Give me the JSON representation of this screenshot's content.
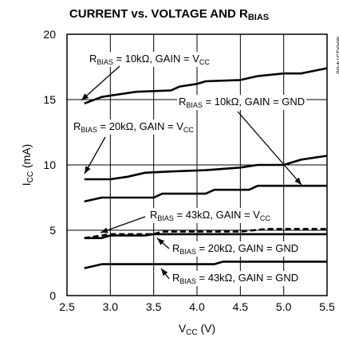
{
  "chart_data": {
    "type": "line",
    "title": "CURRENT vs. VOLTAGE AND R",
    "title_subscript": "BIAS",
    "xlabel": "V",
    "xlabel_subscript": "CC",
    "xlabel_unit": " (V)",
    "ylabel": "I",
    "ylabel_subscript": "CC",
    "ylabel_unit": " (mA)",
    "xlim": [
      2.5,
      5.5
    ],
    "ylim": [
      0,
      20
    ],
    "xticks": [
      "2.5",
      "3.0",
      "3.5",
      "4.0",
      "4.5",
      "5.0",
      "5.5"
    ],
    "yticks": [
      "0",
      "5",
      "10",
      "15",
      "20"
    ],
    "grid": true,
    "side_text": "MAX2374-08",
    "series": [
      {
        "id": "s1",
        "dashed": false,
        "points": [
          [
            2.7,
            14.7
          ],
          [
            2.9,
            15.2
          ],
          [
            3.1,
            15.4
          ],
          [
            3.3,
            15.6
          ],
          [
            3.7,
            15.7
          ],
          [
            3.8,
            16.0
          ],
          [
            4.0,
            16.2
          ],
          [
            4.1,
            16.4
          ],
          [
            4.5,
            16.5
          ],
          [
            4.7,
            16.8
          ],
          [
            5.0,
            17.0
          ],
          [
            5.2,
            17.0
          ],
          [
            5.5,
            17.4
          ]
        ]
      },
      {
        "id": "s2",
        "dashed": false,
        "points": [
          [
            2.7,
            8.9
          ],
          [
            3.0,
            8.9
          ],
          [
            3.2,
            9.1
          ],
          [
            3.4,
            9.4
          ],
          [
            3.7,
            9.5
          ],
          [
            4.1,
            9.6
          ],
          [
            4.5,
            9.8
          ],
          [
            4.7,
            10.0
          ],
          [
            5.0,
            10.0
          ],
          [
            5.2,
            10.4
          ],
          [
            5.5,
            10.7
          ]
        ]
      },
      {
        "id": "s3",
        "dashed": false,
        "points": [
          [
            2.7,
            7.2
          ],
          [
            2.9,
            7.5
          ],
          [
            3.5,
            7.5
          ],
          [
            3.6,
            7.8
          ],
          [
            4.1,
            7.8
          ],
          [
            4.2,
            8.1
          ],
          [
            4.6,
            8.1
          ],
          [
            4.7,
            8.4
          ],
          [
            5.5,
            8.4
          ]
        ]
      },
      {
        "id": "s4",
        "dashed": true,
        "points": [
          [
            2.7,
            4.4
          ],
          [
            3.0,
            4.7
          ],
          [
            3.5,
            4.7
          ],
          [
            3.6,
            4.9
          ],
          [
            4.5,
            4.9
          ],
          [
            4.8,
            5.1
          ],
          [
            5.5,
            5.1
          ]
        ]
      },
      {
        "id": "s5",
        "dashed": false,
        "points": [
          [
            2.7,
            4.4
          ],
          [
            2.9,
            4.4
          ],
          [
            3.0,
            4.6
          ],
          [
            3.4,
            4.6
          ],
          [
            3.5,
            4.7
          ],
          [
            5.5,
            4.7
          ]
        ]
      },
      {
        "id": "s6",
        "dashed": false,
        "points": [
          [
            2.7,
            2.1
          ],
          [
            2.9,
            2.4
          ],
          [
            4.2,
            2.4
          ],
          [
            4.3,
            2.6
          ],
          [
            5.5,
            2.6
          ]
        ]
      }
    ],
    "annotations": [
      {
        "main": "R",
        "sub": "BIAS",
        "rest": " = 10kΩ, GAIN = V",
        "sub2": "CC"
      },
      {
        "main": "R",
        "sub": "BIAS",
        "rest": " = 10kΩ, GAIN = GND",
        "sub2": ""
      },
      {
        "main": "R",
        "sub": "BIAS",
        "rest": " = 20kΩ, GAIN = V",
        "sub2": "CC"
      },
      {
        "main": "R",
        "sub": "BIAS",
        "rest": " = 43kΩ, GAIN = V",
        "sub2": "CC"
      },
      {
        "main": "R",
        "sub": "BIAS",
        "rest": " = 20kΩ, GAIN = GND",
        "sub2": ""
      },
      {
        "main": "R",
        "sub": "BIAS",
        "rest": " = 43kΩ, GAIN = GND",
        "sub2": ""
      }
    ]
  }
}
